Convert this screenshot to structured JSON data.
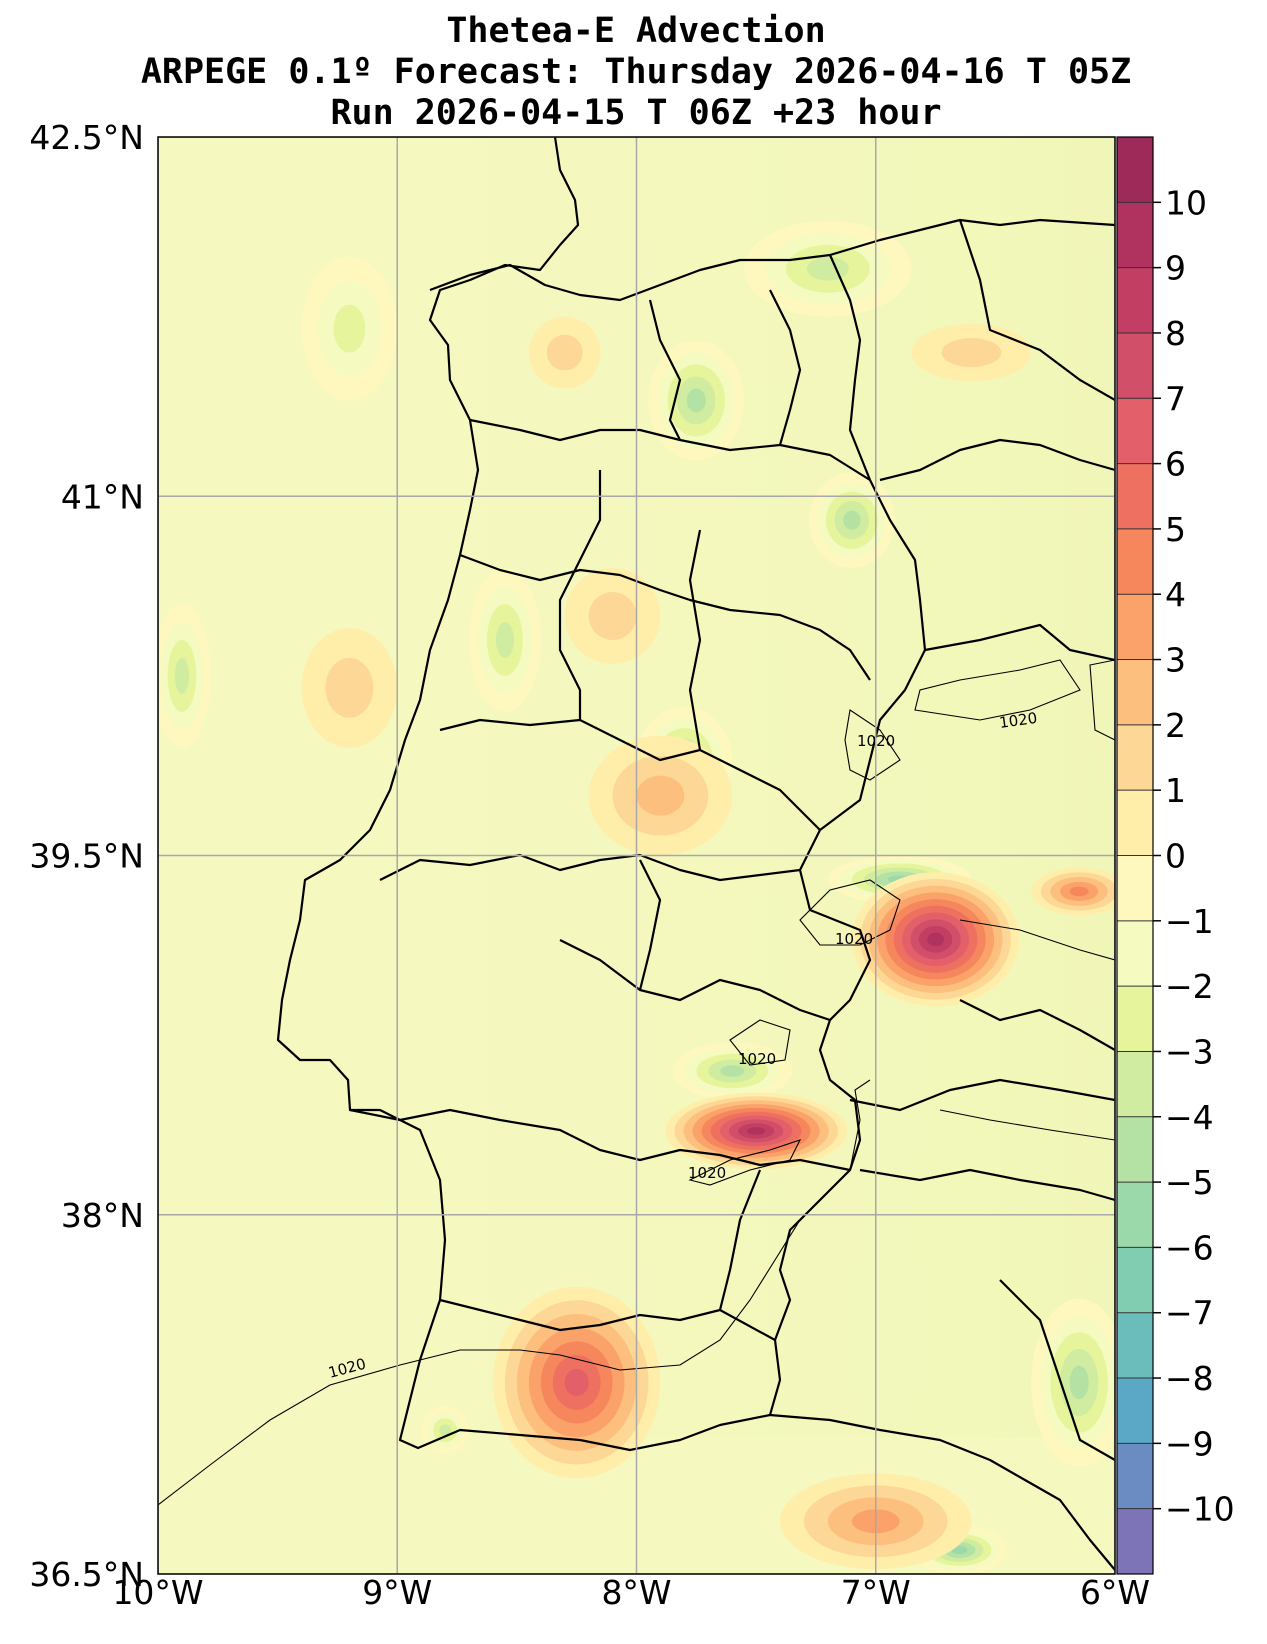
{
  "title": {
    "line1": "Thetea-E Advection",
    "line2": "ARPEGE 0.1º Forecast: Thursday 2026-04-16 T 05Z",
    "line3": "Run 2026-04-15 T 06Z +23 hour"
  },
  "map": {
    "lon_range": [
      -10,
      -6
    ],
    "lat_range": [
      36.5,
      42.5
    ],
    "x_ticks": [
      {
        "value": -10,
        "label": "10°W"
      },
      {
        "value": -9,
        "label": "9°W"
      },
      {
        "value": -8,
        "label": "8°W"
      },
      {
        "value": -7,
        "label": "7°W"
      },
      {
        "value": -6,
        "label": "6°W"
      }
    ],
    "y_ticks": [
      {
        "value": 42.5,
        "label": "42.5°N"
      },
      {
        "value": 41,
        "label": "41°N"
      },
      {
        "value": 39.5,
        "label": "39.5°N"
      },
      {
        "value": 38,
        "label": "38°N"
      },
      {
        "value": 36.5,
        "label": "36.5°N"
      }
    ],
    "grid": true,
    "background_color": "#f5f8bf",
    "warm_blobs": [
      {
        "lon": -6.75,
        "lat": 39.15,
        "rlon": 0.35,
        "rlat": 0.28,
        "level": 10
      },
      {
        "lon": -7.5,
        "lat": 38.35,
        "rlon": 0.38,
        "rlat": 0.16,
        "level": 10
      },
      {
        "lon": -8.25,
        "lat": 37.3,
        "rlon": 0.35,
        "rlat": 0.4,
        "level": 7
      },
      {
        "lon": -7.9,
        "lat": 39.75,
        "rlon": 0.3,
        "rlat": 0.25,
        "level": 3
      },
      {
        "lon": -7.0,
        "lat": 36.72,
        "rlon": 0.4,
        "rlat": 0.2,
        "level": 4
      },
      {
        "lon": -6.15,
        "lat": 39.35,
        "rlon": 0.2,
        "rlat": 0.1,
        "level": 5
      },
      {
        "lon": -6.6,
        "lat": 41.6,
        "rlon": 0.25,
        "rlat": 0.12,
        "level": 2
      },
      {
        "lon": -8.3,
        "lat": 41.6,
        "rlon": 0.15,
        "rlat": 0.15,
        "level": 2
      },
      {
        "lon": -9.2,
        "lat": 40.2,
        "rlon": 0.2,
        "rlat": 0.25,
        "level": 2
      },
      {
        "lon": -8.1,
        "lat": 40.5,
        "rlon": 0.2,
        "rlat": 0.2,
        "level": 2
      }
    ],
    "cool_blobs": [
      {
        "lon": -7.2,
        "lat": 41.95,
        "rlon": 0.35,
        "rlat": 0.2,
        "level": -4
      },
      {
        "lon": -7.75,
        "lat": 41.4,
        "rlon": 0.2,
        "rlat": 0.25,
        "level": -5
      },
      {
        "lon": -7.1,
        "lat": 40.9,
        "rlon": 0.18,
        "rlat": 0.2,
        "level": -5
      },
      {
        "lon": -8.55,
        "lat": 40.4,
        "rlon": 0.15,
        "rlat": 0.3,
        "level": -4
      },
      {
        "lon": -7.8,
        "lat": 39.9,
        "rlon": 0.2,
        "rlat": 0.22,
        "level": -5
      },
      {
        "lon": -6.9,
        "lat": 39.4,
        "rlon": 0.3,
        "rlat": 0.1,
        "level": -6
      },
      {
        "lon": -7.6,
        "lat": 38.6,
        "rlon": 0.25,
        "rlat": 0.12,
        "level": -5
      },
      {
        "lon": -9.2,
        "lat": 41.7,
        "rlon": 0.2,
        "rlat": 0.3,
        "level": -3
      },
      {
        "lon": -9.9,
        "lat": 40.25,
        "rlon": 0.12,
        "rlat": 0.3,
        "level": -4
      },
      {
        "lon": -6.15,
        "lat": 37.3,
        "rlon": 0.2,
        "rlat": 0.35,
        "level": -5
      },
      {
        "lon": -6.65,
        "lat": 36.6,
        "rlon": 0.2,
        "rlat": 0.1,
        "level": -6
      },
      {
        "lon": -8.8,
        "lat": 37.1,
        "rlon": 0.1,
        "rlat": 0.1,
        "level": -4
      }
    ],
    "isobar_label": "1020"
  },
  "colorbar": {
    "levels": [
      -11,
      -10,
      -9,
      -8,
      -7,
      -6,
      -5,
      -4,
      -3,
      -2,
      -1,
      0,
      1,
      2,
      3,
      4,
      5,
      6,
      7,
      8,
      9,
      10,
      11
    ],
    "tick_labels": [
      "10",
      "9",
      "8",
      "7",
      "6",
      "5",
      "4",
      "3",
      "2",
      "1",
      "0",
      "−1",
      "−2",
      "−3",
      "−4",
      "−5",
      "−6",
      "−7",
      "−8",
      "−9",
      "−10"
    ],
    "tick_values": [
      10,
      9,
      8,
      7,
      6,
      5,
      4,
      3,
      2,
      1,
      0,
      -1,
      -2,
      -3,
      -4,
      -5,
      -6,
      -7,
      -8,
      -9,
      -10
    ],
    "colors": [
      "#7d74b8",
      "#6b8cc3",
      "#5aa8c6",
      "#6bbdbb",
      "#80cdb1",
      "#9bd8aa",
      "#b4e2a5",
      "#cfeca0",
      "#e6f59b",
      "#f5fac1",
      "#fef8be",
      "#feeeaa",
      "#fdd795",
      "#fdbf7e",
      "#fba26a",
      "#f6875c",
      "#ee7060",
      "#e3606a",
      "#d24f6a",
      "#c23f63",
      "#b0325e",
      "#9e2a5a"
    ]
  }
}
